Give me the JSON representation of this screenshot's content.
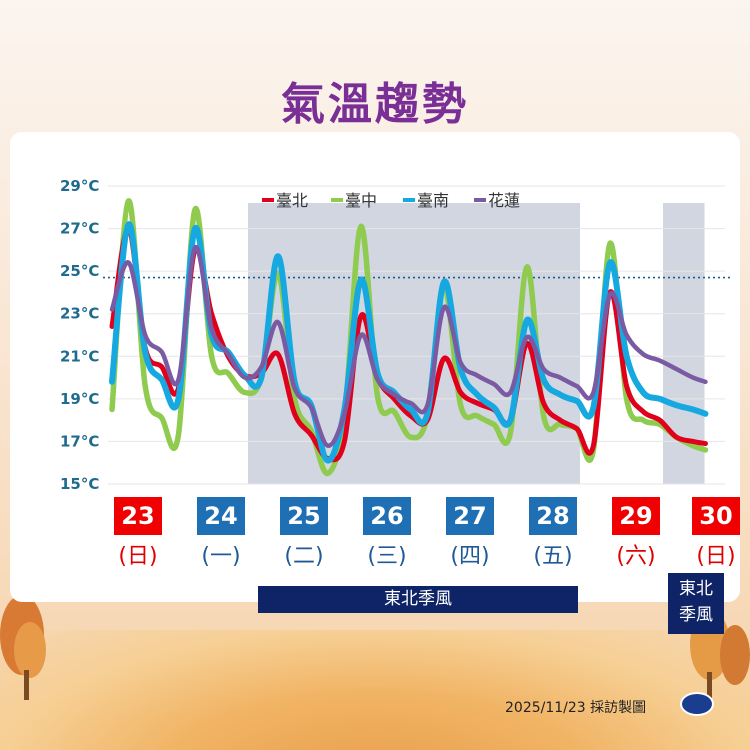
{
  "title": "氣溫趨勢",
  "colors": {
    "taipei": "#e0001b",
    "taichung": "#8fcb4e",
    "tainan": "#16a8e0",
    "hualien": "#7a5aa3",
    "weekday_box": "#1f6fb5",
    "weekend_box": "#f00000",
    "monsoon_shade": "#c2c8d6",
    "title": "#7a2f97"
  },
  "chart_data": {
    "type": "line",
    "title": "氣溫趨勢",
    "y_tick_labels": [
      "29°C",
      "27°C",
      "25°C",
      "23°C",
      "21°C",
      "19°C",
      "17°C",
      "15°C"
    ],
    "y_ticks": [
      29,
      27,
      25,
      23,
      21,
      19,
      17,
      15
    ],
    "ylim": [
      15,
      29
    ],
    "reference_line": 24.7,
    "x_unit": "day index (23 = Nov 23)",
    "xlim": [
      23,
      30.5
    ],
    "legend": [
      "臺北",
      "臺中",
      "臺南",
      "花蓮"
    ],
    "legend_position": "top-center",
    "series": [
      {
        "name": "臺北",
        "x": [
          23.0,
          23.2,
          23.4,
          23.6,
          23.8,
          24.0,
          24.2,
          24.4,
          24.6,
          24.8,
          25.0,
          25.2,
          25.4,
          25.6,
          25.8,
          26.0,
          26.2,
          26.4,
          26.6,
          26.8,
          27.0,
          27.2,
          27.4,
          27.6,
          27.8,
          28.0,
          28.2,
          28.4,
          28.6,
          28.8,
          29.0,
          29.2,
          29.4,
          29.6,
          29.8,
          30.0,
          30.15
        ],
        "y": [
          22.4,
          27.0,
          21.4,
          20.5,
          19.5,
          26.0,
          23.0,
          21.0,
          20.1,
          20.2,
          21.1,
          18.3,
          17.3,
          16.2,
          17.0,
          22.9,
          20.0,
          19.0,
          18.2,
          18.0,
          20.9,
          19.3,
          18.8,
          18.5,
          18.0,
          21.6,
          18.8,
          18.0,
          17.6,
          16.8,
          24.0,
          19.6,
          18.4,
          18.0,
          17.2,
          17.0,
          16.9
        ]
      },
      {
        "name": "臺中",
        "x": [
          23.0,
          23.2,
          23.4,
          23.6,
          23.8,
          24.0,
          24.2,
          24.4,
          24.6,
          24.8,
          25.0,
          25.2,
          25.4,
          25.6,
          25.8,
          26.0,
          26.2,
          26.4,
          26.6,
          26.8,
          27.0,
          27.2,
          27.4,
          27.6,
          27.8,
          28.0,
          28.2,
          28.4,
          28.6,
          28.8,
          29.0,
          29.2,
          29.4,
          29.6,
          29.8,
          30.0,
          30.15
        ],
        "y": [
          18.5,
          28.3,
          19.6,
          18.1,
          17.3,
          27.9,
          21.0,
          20.2,
          19.3,
          20.0,
          24.9,
          19.0,
          17.5,
          15.5,
          18.2,
          27.1,
          19.1,
          18.4,
          17.2,
          18.2,
          24.3,
          18.7,
          18.2,
          17.8,
          17.4,
          25.2,
          18.2,
          17.8,
          17.6,
          16.6,
          26.3,
          19.0,
          18.0,
          17.8,
          17.2,
          16.8,
          16.6
        ]
      },
      {
        "name": "臺南",
        "x": [
          23.0,
          23.2,
          23.4,
          23.6,
          23.8,
          24.0,
          24.2,
          24.4,
          24.6,
          24.8,
          25.0,
          25.2,
          25.4,
          25.6,
          25.8,
          26.0,
          26.2,
          26.4,
          26.6,
          26.8,
          27.0,
          27.2,
          27.4,
          27.6,
          27.8,
          28.0,
          28.2,
          28.4,
          28.6,
          28.8,
          29.0,
          29.2,
          29.4,
          29.6,
          29.8,
          30.0,
          30.15
        ],
        "y": [
          19.8,
          27.2,
          21.2,
          19.9,
          19.0,
          27.0,
          22.0,
          21.2,
          20.1,
          20.0,
          25.7,
          19.8,
          18.7,
          16.1,
          18.5,
          24.6,
          20.2,
          19.3,
          18.5,
          18.3,
          24.5,
          20.4,
          19.2,
          18.6,
          18.0,
          22.7,
          19.9,
          19.2,
          18.9,
          18.6,
          25.4,
          21.0,
          19.3,
          19.0,
          18.7,
          18.5,
          18.3
        ]
      },
      {
        "name": "花蓮",
        "x": [
          23.0,
          23.2,
          23.4,
          23.6,
          23.8,
          24.0,
          24.2,
          24.4,
          24.6,
          24.8,
          25.0,
          25.2,
          25.4,
          25.6,
          25.8,
          26.0,
          26.2,
          26.4,
          26.6,
          26.8,
          27.0,
          27.2,
          27.4,
          27.6,
          27.8,
          28.0,
          28.2,
          28.4,
          28.6,
          28.8,
          29.0,
          29.2,
          29.4,
          29.6,
          29.8,
          30.0,
          30.15
        ],
        "y": [
          23.2,
          25.4,
          22.0,
          21.2,
          19.9,
          26.1,
          22.3,
          21.1,
          20.0,
          20.5,
          22.6,
          19.5,
          18.6,
          16.8,
          18.3,
          22.0,
          19.9,
          19.2,
          18.8,
          18.7,
          23.3,
          20.7,
          20.1,
          19.7,
          19.3,
          21.9,
          20.4,
          20.0,
          19.6,
          19.3,
          23.9,
          22.0,
          21.1,
          20.8,
          20.4,
          20.0,
          19.8
        ]
      }
    ],
    "monsoon_shaded_days": [
      [
        25,
        29
      ],
      [
        30,
        30.5
      ]
    ],
    "days": [
      {
        "date": "23",
        "weekday": "(日)",
        "weekend": true
      },
      {
        "date": "24",
        "weekday": "(一)",
        "weekend": false
      },
      {
        "date": "25",
        "weekday": "(二)",
        "weekend": false
      },
      {
        "date": "26",
        "weekday": "(三)",
        "weekend": false
      },
      {
        "date": "27",
        "weekday": "(四)",
        "weekend": false
      },
      {
        "date": "28",
        "weekday": "(五)",
        "weekend": false
      },
      {
        "date": "29",
        "weekday": "(六)",
        "weekend": true
      },
      {
        "date": "30",
        "weekday": "(日)",
        "weekend": true
      }
    ]
  },
  "weather_labels": {
    "main": "東北季風",
    "side_line1": "東北",
    "side_line2": "季風"
  },
  "credit": "2025/11/23 採訪製圖"
}
